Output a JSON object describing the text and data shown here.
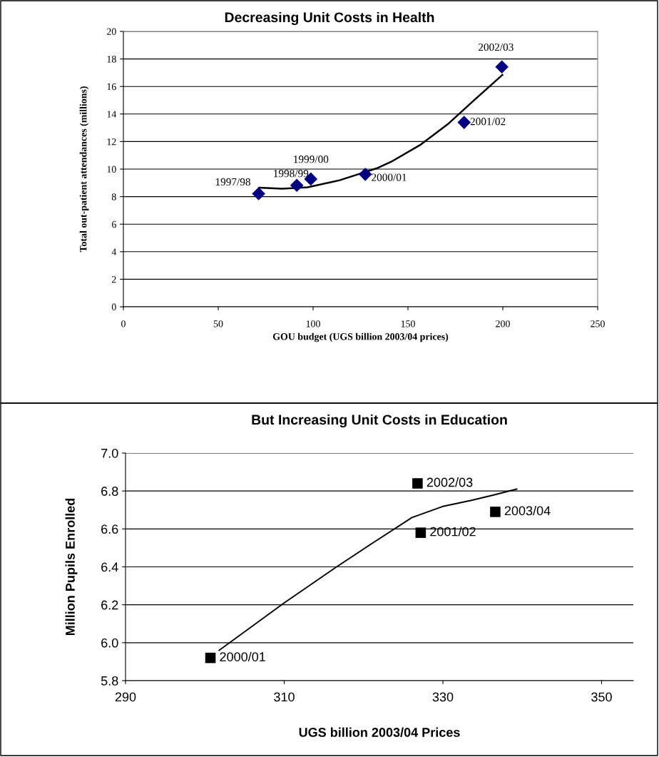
{
  "chart_data": [
    {
      "type": "scatter",
      "title": "Decreasing Unit Costs in Health",
      "xlabel": "GOU budget (UGS billion 2003/04 prices)",
      "ylabel": "Total out-patient attendances (millions)",
      "xlim": [
        0,
        250
      ],
      "xticks": [
        0,
        50,
        100,
        150,
        200,
        250
      ],
      "ylim": [
        0,
        20
      ],
      "yticks": [
        0,
        2,
        4,
        6,
        8,
        10,
        12,
        14,
        16,
        18,
        20
      ],
      "grid": "y",
      "legend": false,
      "series": [
        {
          "marker": "diamond",
          "color": "#000080",
          "x": [
            71.3,
            91.4,
            98.8,
            127.5,
            179.6,
            199.5
          ],
          "values": [
            8.21,
            8.82,
            9.28,
            9.62,
            13.39,
            17.42
          ]
        },
        {
          "type": "line",
          "marker": "none",
          "line_style": "solid",
          "color": "#000000",
          "x": [
            71.6,
            83.6,
            97.1,
            114,
            134,
            141,
            156.3,
            171.5,
            185,
            199.8
          ],
          "values": [
            8.65,
            8.58,
            8.68,
            9.19,
            10.08,
            10.52,
            11.74,
            13.32,
            15.02,
            16.84
          ]
        }
      ],
      "annotations": [
        {
          "text": "1997/98",
          "x": 71.3,
          "y": 8.21
        },
        {
          "text": "1998/99",
          "x": 91.4,
          "y": 8.82
        },
        {
          "text": "1999/00",
          "x": 98.8,
          "y": 9.28
        },
        {
          "text": "2000/01",
          "x": 127.5,
          "y": 9.62
        },
        {
          "text": "2001/02",
          "x": 179.6,
          "y": 13.39
        },
        {
          "text": "2002/03",
          "x": 199.5,
          "y": 17.42
        }
      ]
    },
    {
      "type": "scatter",
      "title": "But Increasing Unit Costs in Education",
      "xlabel": "UGS billion 2003/04 Prices",
      "ylabel": "Million Pupils Enrolled",
      "xlim": [
        290,
        354
      ],
      "xticks": [
        290,
        310,
        330,
        350
      ],
      "ylim": [
        5.8,
        7.0
      ],
      "yticks": [
        {
          "value": 5.8,
          "label": "5.8"
        },
        {
          "value": 6.0,
          "label": "6.0"
        },
        {
          "value": 6.2,
          "label": "6.2"
        },
        {
          "value": 6.4,
          "label": "6.4"
        },
        {
          "value": 6.6,
          "label": "6.6"
        },
        {
          "value": 6.8,
          "label": "6.8"
        },
        {
          "value": 7.0,
          "label": "7.0"
        }
      ],
      "grid": "y",
      "legend": false,
      "series": [
        {
          "marker": "square",
          "color": "#000000",
          "x": [
            300.7,
            327.2,
            326.8,
            336.6
          ],
          "values": [
            5.92,
            6.58,
            6.84,
            6.69
          ]
        },
        {
          "type": "line",
          "marker": "none",
          "line_style": "solid",
          "color": "#000000",
          "x": [
            301.8,
            310,
            316.6,
            321.3,
            326.1,
            330.1,
            333.5,
            336.5,
            339.3
          ],
          "values": [
            5.96,
            6.21,
            6.4,
            6.53,
            6.66,
            6.72,
            6.75,
            6.78,
            6.81
          ]
        }
      ],
      "annotations": [
        {
          "text": "2000/01",
          "x": 300.7,
          "y": 5.92
        },
        {
          "text": "2001/02",
          "x": 327.2,
          "y": 6.58
        },
        {
          "text": "2002/03",
          "x": 326.8,
          "y": 6.84
        },
        {
          "text": "2003/04",
          "x": 336.6,
          "y": 6.69
        }
      ]
    }
  ]
}
